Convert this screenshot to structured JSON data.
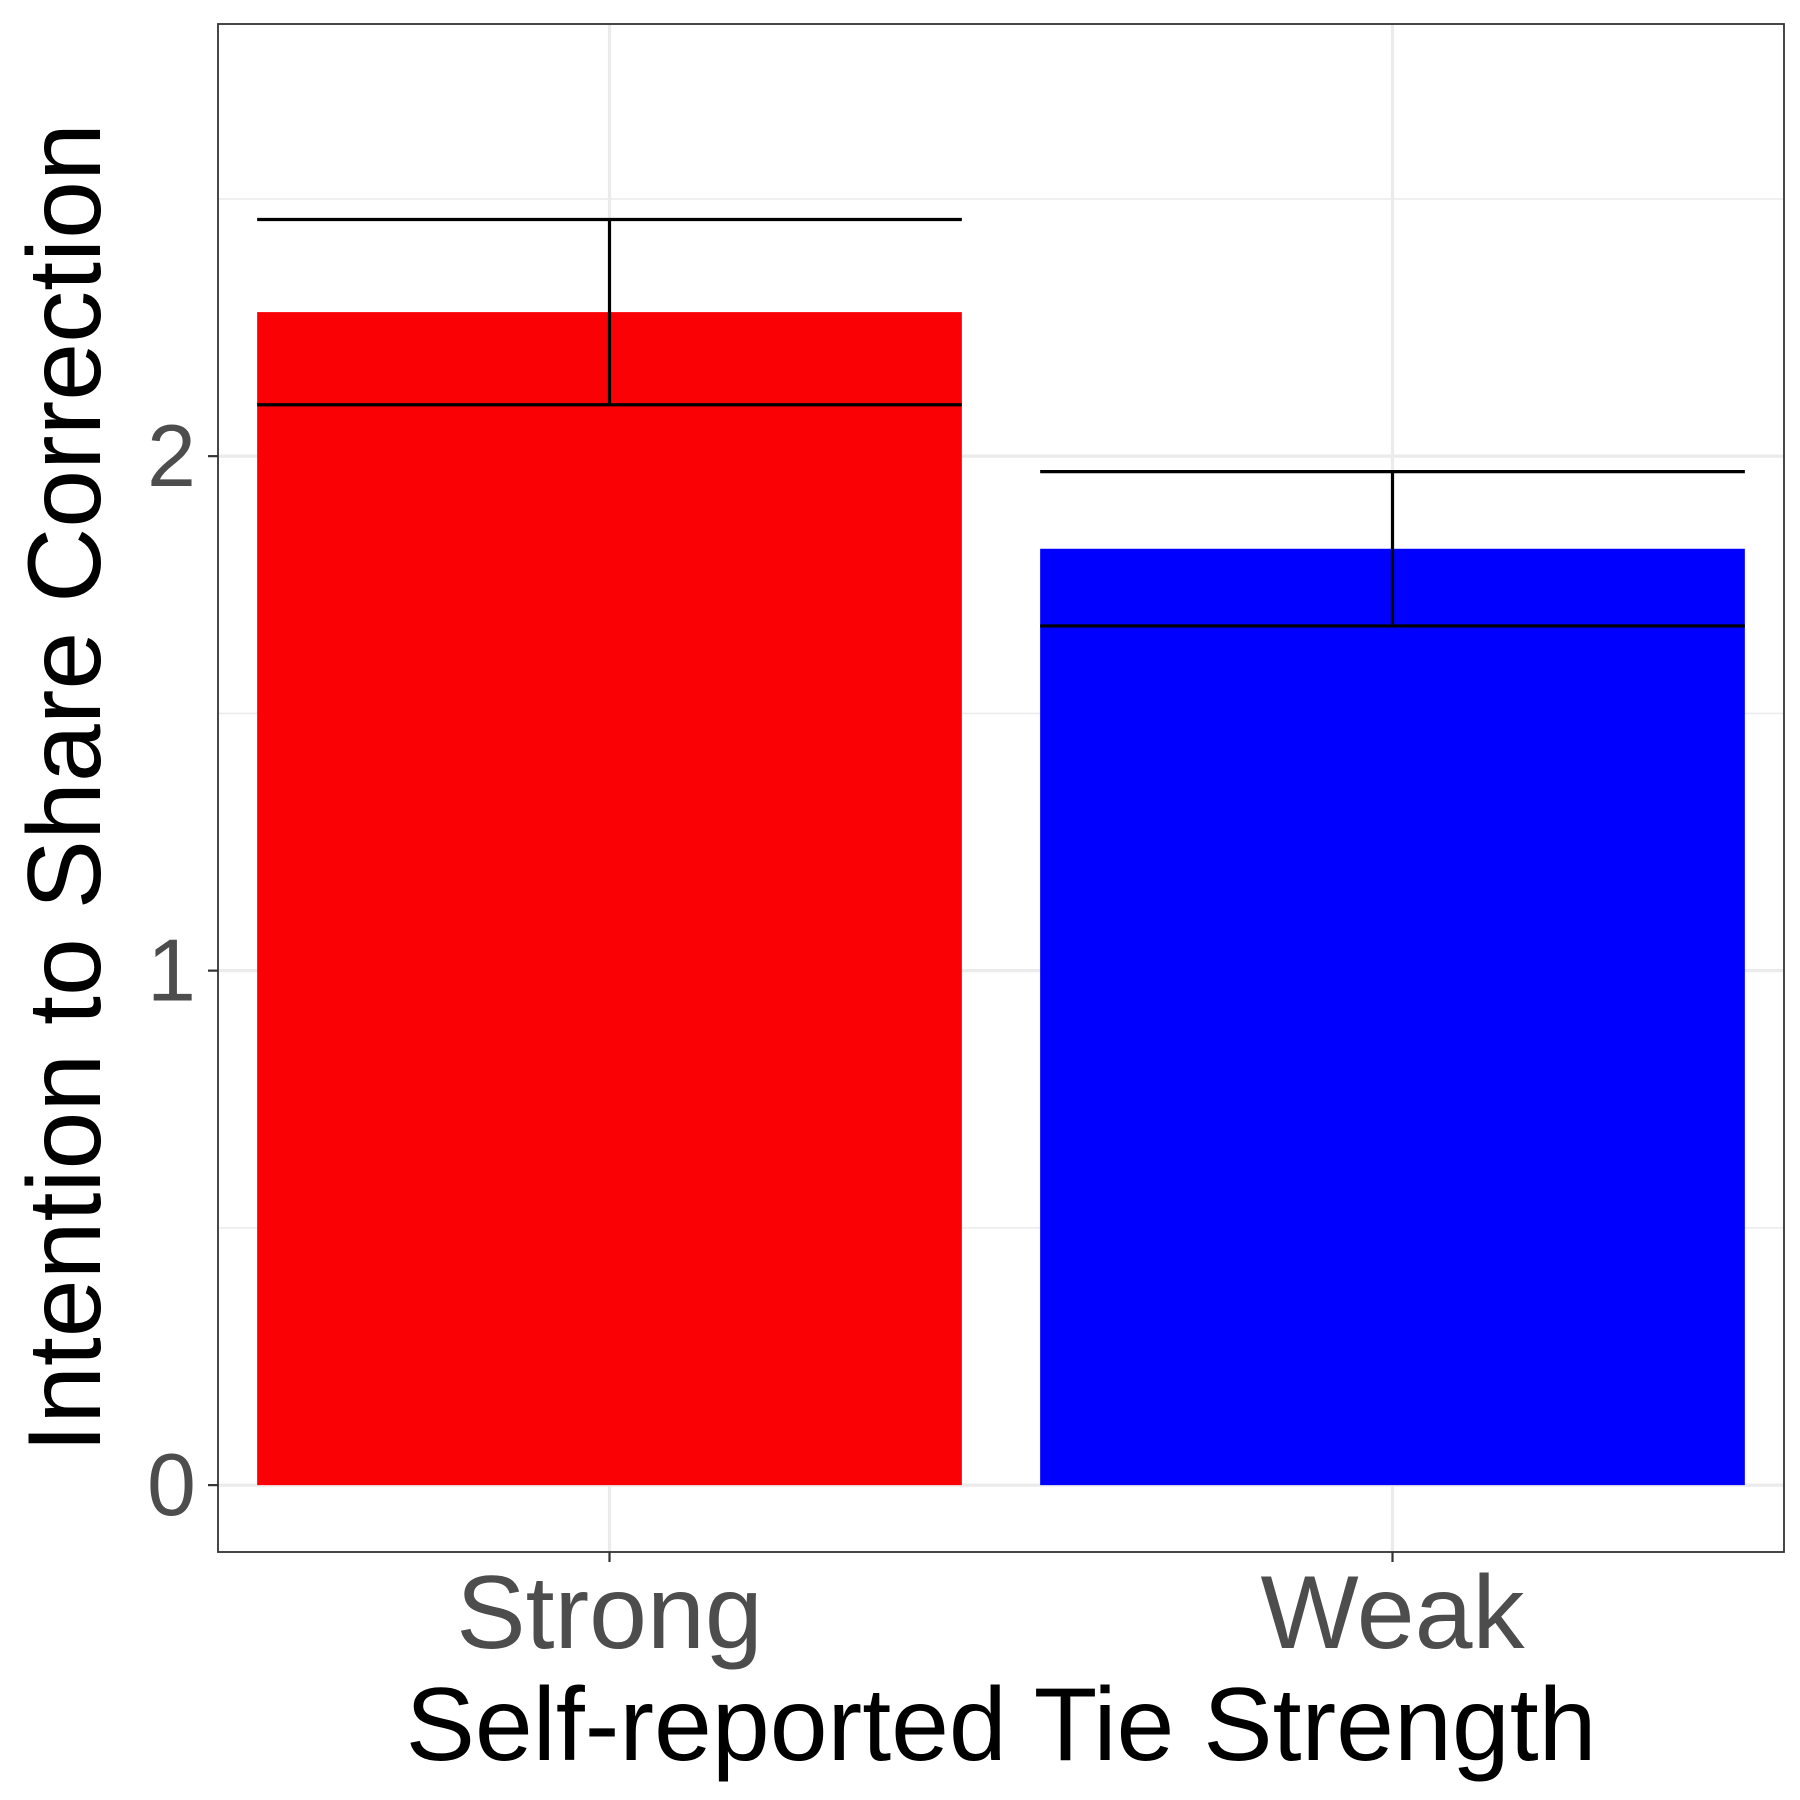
{
  "chart_data": {
    "type": "bar",
    "categories": [
      "Strong",
      "Weak"
    ],
    "values": [
      2.28,
      1.82
    ],
    "error_bars": [
      {
        "low": 2.1,
        "high": 2.46
      },
      {
        "low": 1.67,
        "high": 1.97
      }
    ],
    "bar_colors": [
      "#fa0106",
      "#0000fe"
    ],
    "title": "",
    "xlabel": "Self-reported Tie Strength",
    "ylabel": "Intention to Share Correction",
    "ylim": [
      -0.13,
      2.84
    ],
    "yticks": [
      0,
      1,
      2
    ],
    "ytick_labels": [
      "0",
      "1",
      "2"
    ],
    "grid": true,
    "legend": "none"
  }
}
